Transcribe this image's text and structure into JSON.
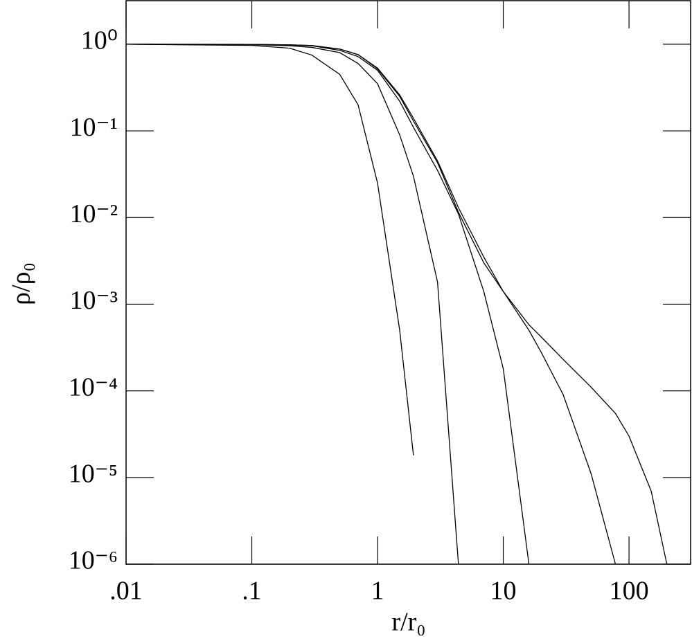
{
  "chart_data": {
    "type": "line",
    "x_label": "r/r₀",
    "y_label": "ρ/ρ₀",
    "xscale": "log",
    "yscale": "log",
    "xlim": [
      0.01,
      309
    ],
    "ylim": [
      1e-06,
      3.18
    ],
    "xticks": [
      {
        "value": 0.01,
        "label": ".01"
      },
      {
        "value": 0.1,
        "label": ".1"
      },
      1,
      10,
      100
    ],
    "yticks": [
      {
        "value": 1e-06,
        "label": "10⁻⁶"
      },
      {
        "value": 1e-05,
        "label": "10⁻⁵"
      },
      {
        "value": 0.0001,
        "label": "10⁻⁴"
      },
      {
        "value": 0.001,
        "label": "10⁻³"
      },
      {
        "value": 0.01,
        "label": "10⁻²"
      },
      {
        "value": 0.1,
        "label": "10⁻¹"
      },
      {
        "value": 1,
        "label": "10⁰"
      }
    ],
    "x": [
      0.01,
      0.1,
      0.2,
      0.3,
      0.5,
      0.7,
      1,
      1.5,
      1.93,
      3,
      4.4,
      7,
      10,
      16,
      20,
      30,
      50,
      78,
      100,
      150,
      200
    ],
    "series": [
      {
        "color": "#000000",
        "values": [
          1,
          0.97,
          0.9,
          0.75,
          0.45,
          0.2,
          0.025,
          0.0005,
          1.8e-05,
          null,
          null,
          null,
          null,
          null,
          null,
          null,
          null,
          null,
          null,
          null,
          null
        ]
      },
      {
        "color": "#000000",
        "values": [
          1,
          0.99,
          0.96,
          0.92,
          0.8,
          0.6,
          0.35,
          0.09,
          0.03,
          0.0018,
          1e-06,
          null,
          null,
          null,
          null,
          null,
          null,
          null,
          null,
          null,
          null
        ]
      },
      {
        "color": "#000000",
        "values": [
          1,
          0.995,
          0.98,
          0.96,
          0.85,
          0.72,
          0.5,
          0.22,
          0.11,
          0.035,
          0.011,
          0.0014,
          0.00018,
          1e-06,
          null,
          null,
          null,
          null,
          null,
          null,
          null
        ]
      },
      {
        "color": "#000000",
        "values": [
          1,
          0.995,
          0.985,
          0.965,
          0.88,
          0.76,
          0.52,
          0.25,
          0.13,
          0.043,
          0.0115,
          0.003,
          0.0014,
          0.0005,
          0.00028,
          9e-05,
          1.1e-05,
          1e-06,
          null,
          null,
          null
        ]
      },
      {
        "color": "#000000",
        "values": [
          1,
          0.995,
          0.985,
          0.965,
          0.88,
          0.76,
          0.53,
          0.26,
          0.14,
          0.045,
          0.013,
          0.0035,
          0.0014,
          0.00058,
          0.00042,
          0.00023,
          0.00011,
          5.5e-05,
          3e-05,
          7e-06,
          1e-06
        ]
      }
    ]
  }
}
